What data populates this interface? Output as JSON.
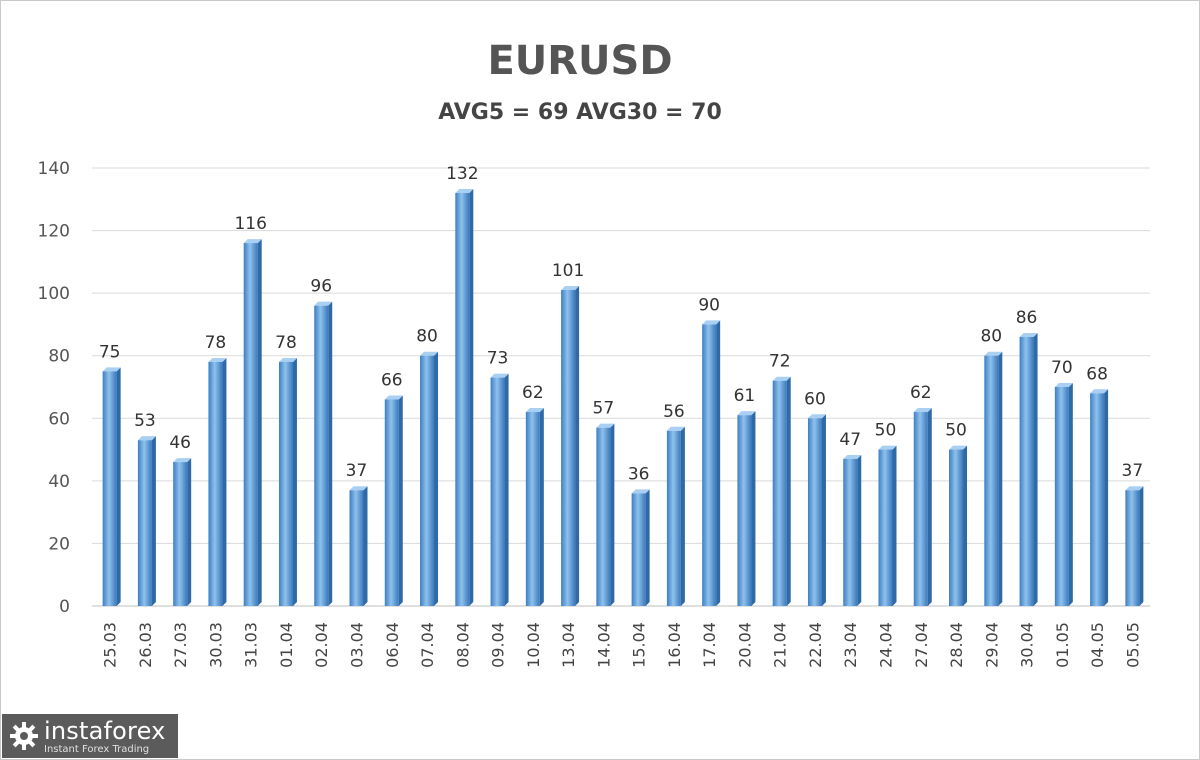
{
  "chart_data": {
    "type": "bar",
    "title": "EURUSD",
    "subtitle": "AVG5 = 69 AVG30 = 70",
    "categories": [
      "25.03",
      "26.03",
      "27.03",
      "30.03",
      "31.03",
      "01.04",
      "02.04",
      "03.04",
      "06.04",
      "07.04",
      "08.04",
      "09.04",
      "10.04",
      "13.04",
      "14.04",
      "15.04",
      "16.04",
      "17.04",
      "20.04",
      "21.04",
      "22.04",
      "23.04",
      "24.04",
      "27.04",
      "28.04",
      "29.04",
      "30.04",
      "01.05",
      "04.05",
      "05.05"
    ],
    "values": [
      75,
      53,
      46,
      78,
      116,
      78,
      96,
      37,
      66,
      80,
      132,
      73,
      62,
      101,
      57,
      36,
      56,
      90,
      61,
      72,
      60,
      47,
      50,
      62,
      50,
      80,
      86,
      70,
      68,
      37
    ],
    "yticks": [
      0,
      20,
      40,
      60,
      80,
      100,
      120,
      140
    ],
    "ylim": [
      0,
      140
    ],
    "grid": true,
    "bar_color": "#5b9bd5",
    "legend": "none"
  },
  "logo": {
    "name": "instaforex",
    "tagline": "Instant Forex Trading"
  }
}
